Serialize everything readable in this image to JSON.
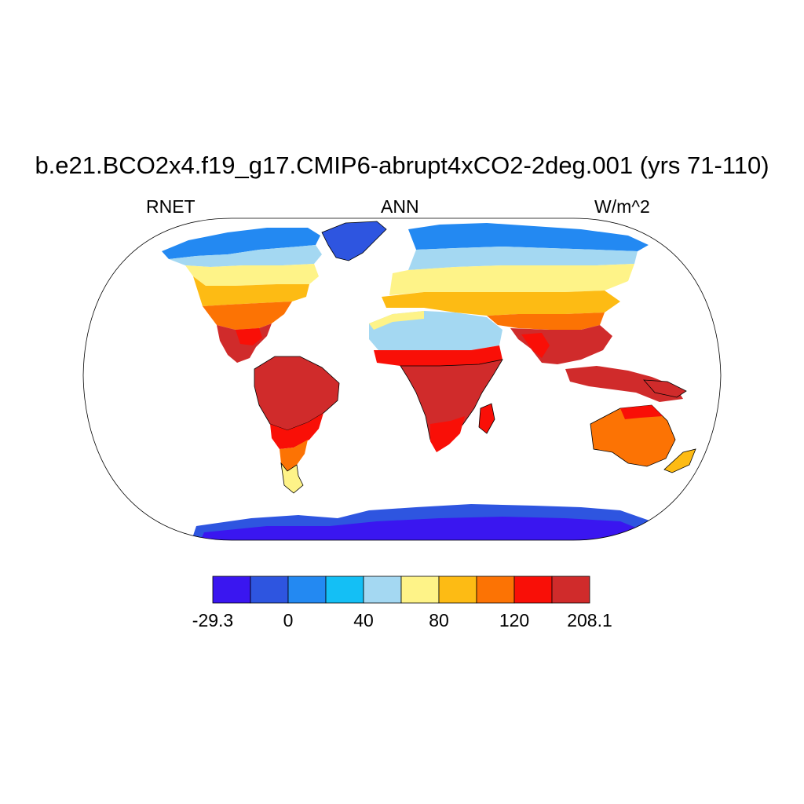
{
  "title": "b.e21.BCO2x4.f19_g17.CMIP6-abrupt4xCO2-2deg.001 (yrs 71-110)",
  "left_label": "RNET",
  "center_label": "ANN",
  "right_label": "W/m^2",
  "colorbar": {
    "colors": [
      "#3a16f0",
      "#2e55e0",
      "#2389f2",
      "#14bff5",
      "#a4d8f2",
      "#fef388",
      "#fdbb14",
      "#fc7304",
      "#f90f07",
      "#d02b2b"
    ],
    "tick_labels": [
      "-29.3",
      "0",
      "40",
      "80",
      "120",
      "208.1"
    ]
  }
}
